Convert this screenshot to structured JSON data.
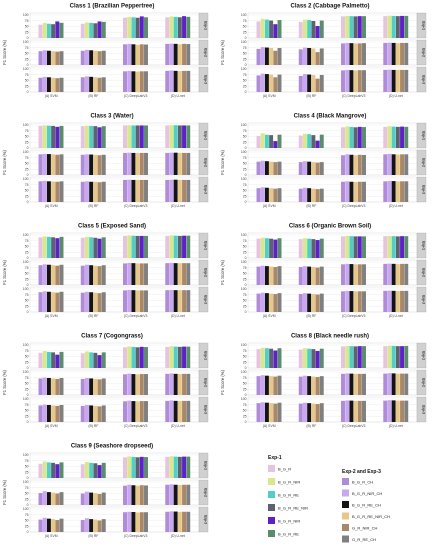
{
  "chart_data": {
    "type": "bar",
    "categories": [
      "(A) SVM",
      "(B) RF",
      "(C) DeepLabV3",
      "(D) U-net"
    ],
    "ylabel": "F1 Score (%)",
    "yticks": [
      0,
      25,
      50,
      75,
      100
    ],
    "ylim": [
      0,
      100
    ],
    "rows": [
      "Exp-1",
      "Exp-2",
      "Exp-3"
    ],
    "legend": {
      "placement": "bottom-right",
      "exp1_title": "Exp-1",
      "exp23_title": "Exp-2 and Exp-3",
      "exp1_items": [
        {
          "name": "B_G_R",
          "color": "#e6c3de"
        },
        {
          "name": "B_G_R_NIR",
          "color": "#d9e88a"
        },
        {
          "name": "B_G_R_RE",
          "color": "#4ed0c8"
        },
        {
          "name": "B_G_R_RE_NIR",
          "color": "#606070"
        },
        {
          "name": "B_G_R_NIR",
          "color": "#5a22c8"
        },
        {
          "name": "B_G_R_RE",
          "color": "#5c8c6c"
        }
      ],
      "exp23_items": [
        {
          "name": "B_G_R_CH",
          "color": "#b08cd8"
        },
        {
          "name": "B_G_R_NIR_CH",
          "color": "#c8a8f0"
        },
        {
          "name": "B_G_R_RE_CH",
          "color": "#141414"
        },
        {
          "name": "B_G_R_RE_NIR_CH",
          "color": "#e8c888"
        },
        {
          "name": "G_R_NIR_CH",
          "color": "#a88868"
        },
        {
          "name": "G_R_RE_CH",
          "color": "#808080"
        }
      ]
    },
    "panels": [
      {
        "title": "Class 1 (Brazilian Peppertree)",
        "data": [
          [
            [
              58,
              66,
              62,
              60,
              72,
              66
            ],
            [
              62,
              68,
              66,
              64,
              72,
              70
            ],
            [
              88,
              92,
              90,
              88,
              94,
              90
            ],
            [
              90,
              94,
              92,
              90,
              95,
              92
            ]
          ],
          [
            [
              60,
              64,
              62,
              60,
              58,
              60
            ],
            [
              62,
              66,
              64,
              62,
              60,
              62
            ],
            [
              90,
              92,
              90,
              88,
              90,
              89
            ],
            [
              92,
              93,
              92,
              90,
              92,
              91
            ]
          ],
          [
            [
              62,
              66,
              64,
              62,
              60,
              62
            ],
            [
              64,
              68,
              66,
              64,
              62,
              64
            ],
            [
              90,
              92,
              90,
              89,
              90,
              90
            ],
            [
              92,
              94,
              92,
              91,
              92,
              92
            ]
          ]
        ]
      },
      {
        "title": "Class 2 (Cabbage Palmetto)",
        "data": [
          [
            [
              72,
              84,
              80,
              76,
              60,
              78
            ],
            [
              70,
              80,
              78,
              74,
              52,
              76
            ],
            [
              94,
              96,
              95,
              94,
              95,
              95
            ],
            [
              95,
              97,
              96,
              95,
              96,
              96
            ]
          ],
          [
            [
              70,
              78,
              76,
              74,
              62,
              74
            ],
            [
              68,
              76,
              74,
              72,
              56,
              72
            ],
            [
              94,
              96,
              95,
              94,
              94,
              95
            ],
            [
              96,
              97,
              96,
              95,
              96,
              96
            ]
          ],
          [
            [
              72,
              80,
              78,
              76,
              64,
              76
            ],
            [
              70,
              78,
              76,
              74,
              58,
              74
            ],
            [
              94,
              96,
              95,
              94,
              95,
              95
            ],
            [
              96,
              97,
              96,
              96,
              96,
              96
            ]
          ]
        ]
      },
      {
        "title": "Class 3 (Water)",
        "data": [
          [
            [
              96,
              98,
              97,
              96,
              92,
              96
            ],
            [
              95,
              97,
              96,
              95,
              90,
              95
            ],
            [
              98,
              99,
              98,
              98,
              98,
              98
            ],
            [
              98,
              99,
              99,
              98,
              98,
              98
            ]
          ],
          [
            [
              90,
              92,
              91,
              90,
              88,
              90
            ],
            [
              88,
              90,
              89,
              88,
              86,
              88
            ],
            [
              96,
              97,
              96,
              96,
              96,
              96
            ],
            [
              96,
              97,
              97,
              96,
              96,
              96
            ]
          ],
          [
            [
              90,
              92,
              90,
              89,
              88,
              90
            ],
            [
              88,
              90,
              88,
              88,
              86,
              88
            ],
            [
              96,
              97,
              96,
              96,
              96,
              96
            ],
            [
              96,
              97,
              97,
              96,
              96,
              96
            ]
          ]
        ]
      },
      {
        "title": "Class 4 (Black Mangrove)",
        "data": [
          [
            [
              52,
              64,
              58,
              56,
              30,
              58
            ],
            [
              54,
              62,
              60,
              56,
              32,
              58
            ],
            [
              90,
              94,
              92,
              90,
              92,
              91
            ],
            [
              92,
              95,
              93,
              92,
              93,
              92
            ]
          ],
          [
            [
              58,
              62,
              60,
              58,
              56,
              58
            ],
            [
              56,
              60,
              58,
              56,
              54,
              56
            ],
            [
              86,
              90,
              88,
              86,
              88,
              87
            ],
            [
              90,
              92,
              90,
              89,
              90,
              90
            ]
          ],
          [
            [
              60,
              64,
              62,
              60,
              58,
              60
            ],
            [
              58,
              62,
              60,
              58,
              56,
              58
            ],
            [
              88,
              90,
              88,
              87,
              88,
              88
            ],
            [
              90,
              92,
              91,
              90,
              90,
              90
            ]
          ]
        ]
      },
      {
        "title": "Class 5 (Exposed Sand)",
        "data": [
          [
            [
              90,
              94,
              92,
              90,
              86,
              92
            ],
            [
              88,
              92,
              90,
              88,
              84,
              90
            ],
            [
              96,
              98,
              97,
              96,
              96,
              96
            ],
            [
              96,
              98,
              97,
              96,
              97,
              97
            ]
          ],
          [
            [
              86,
              90,
              88,
              86,
              84,
              88
            ],
            [
              84,
              88,
              86,
              84,
              82,
              86
            ],
            [
              94,
              96,
              95,
              94,
              94,
              94
            ],
            [
              95,
              96,
              95,
              95,
              95,
              95
            ]
          ],
          [
            [
              86,
              90,
              88,
              86,
              84,
              88
            ],
            [
              84,
              88,
              86,
              84,
              82,
              86
            ],
            [
              94,
              96,
              95,
              94,
              94,
              94
            ],
            [
              95,
              96,
              95,
              95,
              95,
              95
            ]
          ]
        ]
      },
      {
        "title": "Class 6 (Organic Brown Soil)",
        "data": [
          [
            [
              84,
              88,
              86,
              84,
              80,
              86
            ],
            [
              82,
              86,
              84,
              82,
              78,
              84
            ],
            [
              94,
              96,
              95,
              94,
              94,
              94
            ],
            [
              95,
              96,
              95,
              94,
              95,
              95
            ]
          ],
          [
            [
              80,
              84,
              82,
              80,
              78,
              82
            ],
            [
              78,
              82,
              80,
              78,
              76,
              80
            ],
            [
              90,
              92,
              91,
              90,
              90,
              90
            ],
            [
              92,
              93,
              92,
              91,
              92,
              92
            ]
          ],
          [
            [
              80,
              84,
              82,
              80,
              78,
              82
            ],
            [
              78,
              82,
              80,
              78,
              76,
              80
            ],
            [
              90,
              92,
              91,
              90,
              90,
              90
            ],
            [
              92,
              93,
              92,
              91,
              92,
              92
            ]
          ]
        ]
      },
      {
        "title": "Class 7 (Cogongrass)",
        "data": [
          [
            [
              66,
              74,
              70,
              68,
              58,
              70
            ],
            [
              64,
              72,
              68,
              66,
              56,
              68
            ],
            [
              90,
              94,
              92,
              90,
              92,
              91
            ],
            [
              92,
              95,
              93,
              92,
              93,
              93
            ]
          ],
          [
            [
              72,
              76,
              74,
              72,
              70,
              74
            ],
            [
              70,
              74,
              72,
              70,
              68,
              72
            ],
            [
              90,
              93,
              91,
              90,
              91,
              91
            ],
            [
              92,
              94,
              92,
              91,
              92,
              92
            ]
          ],
          [
            [
              72,
              76,
              74,
              72,
              70,
              74
            ],
            [
              70,
              74,
              72,
              70,
              68,
              72
            ],
            [
              90,
              93,
              91,
              90,
              91,
              91
            ],
            [
              92,
              94,
              92,
              91,
              92,
              92
            ]
          ]
        ]
      },
      {
        "title": "Class 8 (Black needle rush)",
        "data": [
          [
            [
              82,
              88,
              86,
              84,
              76,
              86
            ],
            [
              80,
              86,
              84,
              82,
              74,
              84
            ],
            [
              94,
              96,
              95,
              94,
              95,
              95
            ],
            [
              95,
              97,
              96,
              95,
              95,
              96
            ]
          ],
          [
            [
              82,
              86,
              84,
              82,
              80,
              84
            ],
            [
              80,
              84,
              82,
              80,
              78,
              82
            ],
            [
              92,
              94,
              93,
              92,
              92,
              92
            ],
            [
              93,
              95,
              94,
              93,
              93,
              93
            ]
          ],
          [
            [
              82,
              86,
              84,
              82,
              80,
              84
            ],
            [
              80,
              84,
              82,
              80,
              78,
              82
            ],
            [
              92,
              94,
              93,
              92,
              92,
              92
            ],
            [
              93,
              95,
              94,
              93,
              93,
              93
            ]
          ]
        ]
      },
      {
        "title": "Class 9 (Seashore dropseed)",
        "data": [
          [
            [
              62,
              72,
              68,
              66,
              60,
              68
            ],
            [
              60,
              70,
              66,
              64,
              56,
              66
            ],
            [
              90,
              94,
              92,
              90,
              92,
              91
            ],
            [
              92,
              95,
              93,
              92,
              93,
              93
            ]
          ],
          [
            [
              52,
              60,
              56,
              54,
              50,
              56
            ],
            [
              50,
              58,
              54,
              52,
              48,
              54
            ],
            [
              84,
              88,
              86,
              84,
              86,
              85
            ],
            [
              88,
              90,
              88,
              87,
              88,
              88
            ]
          ],
          [
            [
              54,
              62,
              58,
              56,
              52,
              58
            ],
            [
              52,
              60,
              56,
              54,
              50,
              56
            ],
            [
              86,
              88,
              87,
              85,
              86,
              86
            ],
            [
              88,
              90,
              89,
              88,
              88,
              88
            ]
          ]
        ]
      }
    ]
  }
}
